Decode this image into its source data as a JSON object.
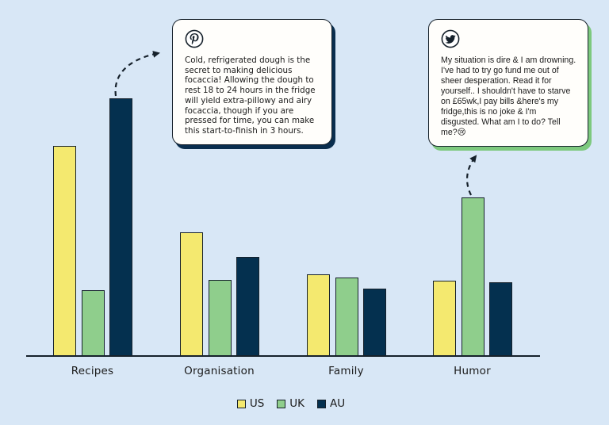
{
  "figure": {
    "background_color": "#d8e7f6",
    "title": ""
  },
  "chart_data": {
    "type": "bar",
    "title": "",
    "xlabel": "",
    "ylabel": "",
    "categories": [
      "Recipes",
      "Organisation",
      "Family",
      "Humor"
    ],
    "series": [
      {
        "name": "US",
        "color": "#f4e96f",
        "values": [
          265,
          156,
          103,
          95
        ]
      },
      {
        "name": "UK",
        "color": "#8fce8c",
        "values": [
          83,
          96,
          99,
          200
        ]
      },
      {
        "name": "AU",
        "color": "#04304f",
        "values": [
          325,
          125,
          85,
          93
        ]
      }
    ],
    "values_unit": "relative bar height (no numeric y-axis shown)",
    "ylim": [
      0,
      340
    ],
    "grid": false,
    "y_axis_visible": false,
    "legend": {
      "position": "bottom-center",
      "entries": [
        "US",
        "UK",
        "AU"
      ]
    },
    "annotations": [
      {
        "id": "pinterest-callout",
        "icon": "pinterest-icon",
        "points_to": "Recipes / AU bar",
        "shadow_color": "#0a2e4e",
        "text": "Cold, refrigerated dough is the secret to making delicious focaccia! Allowing the dough to rest 18 to 24 hours in the fridge will yield extra-pillowy and airy focaccia, though if you are pressed for time, you can make this start-to-finish in 3 hours."
      },
      {
        "id": "twitter-callout",
        "icon": "twitter-icon",
        "points_to": "Humor / UK bar",
        "shadow_color": "#7dc97e",
        "text": "My situation is dire & I am drowning. I've had to try go fund me out of sheer desperation. Read it for yourself.. I shouldn't have to starve on £65wk,I pay bills &here's my fridge,this is no joke & I'm disgusted. What am I to do? Tell me?😢"
      }
    ]
  }
}
